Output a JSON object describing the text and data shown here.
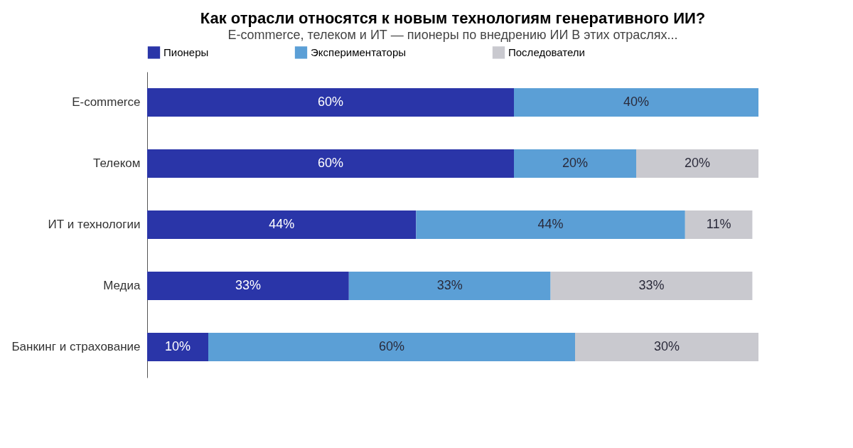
{
  "chart_data": {
    "type": "bar",
    "orientation": "horizontal",
    "stacked": true,
    "title": "Как отрасли относятся к новым технологиям генеративного ИИ?",
    "subtitle": "E-commerce, телеком и ИТ — пионеры по внедрению ИИ В этих отраслях...",
    "categories": [
      "E-commerce",
      "Телеком",
      "ИТ и технологии",
      "Медиа",
      "Банкинг и страхование"
    ],
    "series": [
      {
        "name": "Пионеры",
        "color": "#2a35a8",
        "values": [
          60,
          60,
          44,
          33,
          10
        ],
        "value_labels": [
          "60%",
          "60%",
          "44%",
          "33%",
          "10%"
        ]
      },
      {
        "name": "Экспериментаторы",
        "color": "#5b9fd6",
        "values": [
          40,
          20,
          44,
          33,
          60
        ],
        "value_labels": [
          "40%",
          "20%",
          "44%",
          "33%",
          "60%"
        ]
      },
      {
        "name": "Последователи",
        "color": "#c9c9cf",
        "values": [
          null,
          20,
          11,
          33,
          30
        ],
        "value_labels": [
          null,
          "20%",
          "11%",
          "33%",
          "30%"
        ]
      }
    ],
    "legend": "top",
    "grid": false
  }
}
